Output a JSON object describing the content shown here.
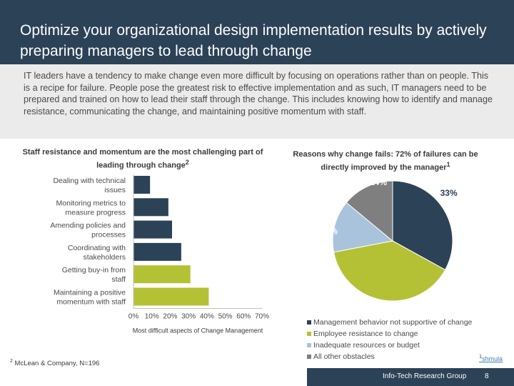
{
  "header": {
    "title": "Optimize your organizational design implementation results by actively preparing managers to lead through change"
  },
  "intro": {
    "text": "IT leaders have a tendency to make change even more difficult by focusing on operations rather than on people. This is a recipe for failure. People pose the greatest risk to effective implementation and as such, IT managers need to be prepared and trained on how to lead their staff through the change. This includes knowing how to identify and manage resistance, communicating the change, and maintaining positive momentum with staff."
  },
  "chart_data": [
    {
      "type": "bar",
      "orientation": "horizontal",
      "title": "Staff resistance and momentum are the most challenging part of leading through change",
      "title_sup": "2",
      "categories": [
        "Dealing with technical issues",
        "Monitoring metrics to measure progress",
        "Amending policies and processes",
        "Coordinating with stakeholders",
        "Getting buy-in from staff",
        "Maintaining a positive momentum with staff"
      ],
      "values": [
        9,
        19,
        21,
        26,
        31,
        41
      ],
      "bar_colors": [
        "#2b4257",
        "#2b4257",
        "#2b4257",
        "#2b4257",
        "#b5c135",
        "#b5c135"
      ],
      "xlim": [
        0,
        70
      ],
      "xticks": [
        "0%",
        "10%",
        "20%",
        "30%",
        "40%",
        "50%",
        "60%",
        "70%"
      ],
      "xlabel": "Most difficult aspects of Change Management"
    },
    {
      "type": "pie",
      "title": "Reasons why change fails: 72% of failures can be directly improved by the manager",
      "title_sup": "1",
      "slices": [
        {
          "label": "Management behavior not supportive of change",
          "value": 33,
          "display": "33%",
          "color": "#2b4257",
          "text_color": "#2b4257"
        },
        {
          "label": "Employee resistance to change",
          "value": 39,
          "display": "39%",
          "color": "#b5c135",
          "text_color": "#ffffff"
        },
        {
          "label": "Inadequate resources or budget",
          "value": 14,
          "display": "14%",
          "color": "#a9c3dc",
          "text_color": "#ffffff"
        },
        {
          "label": "All other obstacles",
          "value": 14,
          "display": "14%",
          "color": "#7f7f7f",
          "text_color": "#ffffff"
        }
      ]
    }
  ],
  "footnote": {
    "sup": "2",
    "text": "McLean & Company, N=196"
  },
  "source": {
    "sup": "1",
    "text": "shmula"
  },
  "footer": {
    "org": "Info-Tech Research Group",
    "page": "8"
  }
}
